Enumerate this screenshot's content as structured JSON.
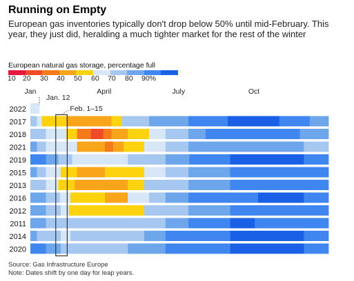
{
  "title": "Running on Empty",
  "subtitle": "European gas inventories typically don't drop below 50% until mid-February. This year, they just did, heralding a much tighter market for the rest of the winter",
  "legend": {
    "title": "European natural gas storage, percentage full",
    "ticks": [
      "10",
      "20",
      "30",
      "40",
      "50",
      "60",
      "70",
      "80",
      "90%"
    ],
    "colors": [
      "#e8173e",
      "#ee4b26",
      "#f6791a",
      "#f9a51c",
      "#fdd20e",
      "#d8e7f7",
      "#a6c8f0",
      "#6ea6ec",
      "#3f86f0",
      "#1a60e6"
    ]
  },
  "source": "Source: Gas Infrastructure Europe",
  "note": "Note: Dates shift by one day for leap years.",
  "chart_data": {
    "type": "heatmap",
    "x_axis": {
      "labels": [
        "Jan",
        "April",
        "July",
        "Oct"
      ],
      "label_days": [
        1,
        91,
        182,
        274
      ],
      "range_days": [
        1,
        365
      ]
    },
    "annotations": [
      {
        "label": "Jan. 12",
        "day": 12
      },
      {
        "label": "Feb. 1–15",
        "start_day": 32,
        "end_day": 46
      }
    ],
    "rows": [
      {
        "year": "2022",
        "segments": [
          [
            1,
            12,
            55
          ]
        ]
      },
      {
        "year": "2017",
        "segments": [
          [
            1,
            9,
            65
          ],
          [
            9,
            15,
            58
          ],
          [
            15,
            25,
            48
          ],
          [
            25,
            45,
            45
          ],
          [
            45,
            85,
            34
          ],
          [
            85,
            100,
            36
          ],
          [
            100,
            113,
            45
          ],
          [
            113,
            130,
            63
          ],
          [
            130,
            146,
            68
          ],
          [
            146,
            166,
            72
          ],
          [
            166,
            194,
            76
          ],
          [
            194,
            215,
            84
          ],
          [
            215,
            242,
            88
          ],
          [
            242,
            305,
            91
          ],
          [
            305,
            342,
            86
          ],
          [
            342,
            365,
            78
          ]
        ]
      },
      {
        "year": "2018",
        "segments": [
          [
            1,
            9,
            68
          ],
          [
            9,
            20,
            62
          ],
          [
            20,
            45,
            53
          ],
          [
            45,
            58,
            40
          ],
          [
            58,
            75,
            24
          ],
          [
            75,
            90,
            17
          ],
          [
            90,
            100,
            24
          ],
          [
            100,
            120,
            32
          ],
          [
            120,
            130,
            40
          ],
          [
            130,
            146,
            48
          ],
          [
            146,
            166,
            56
          ],
          [
            166,
            194,
            65
          ],
          [
            194,
            215,
            72
          ],
          [
            215,
            246,
            80
          ],
          [
            246,
            305,
            88
          ],
          [
            305,
            330,
            84
          ],
          [
            330,
            365,
            76
          ]
        ]
      },
      {
        "year": "2021",
        "segments": [
          [
            1,
            9,
            72
          ],
          [
            9,
            20,
            66
          ],
          [
            20,
            38,
            58
          ],
          [
            38,
            58,
            50
          ],
          [
            58,
            92,
            35
          ],
          [
            92,
            102,
            26
          ],
          [
            102,
            115,
            30
          ],
          [
            115,
            140,
            44
          ],
          [
            140,
            166,
            58
          ],
          [
            166,
            194,
            64
          ],
          [
            194,
            223,
            70
          ],
          [
            223,
            250,
            76
          ],
          [
            250,
            305,
            78
          ],
          [
            305,
            335,
            72
          ],
          [
            335,
            365,
            60
          ]
        ]
      },
      {
        "year": "2019",
        "segments": [
          [
            1,
            9,
            86
          ],
          [
            9,
            20,
            80
          ],
          [
            20,
            35,
            72
          ],
          [
            35,
            52,
            65
          ],
          [
            52,
            120,
            52
          ],
          [
            120,
            166,
            64
          ],
          [
            166,
            195,
            73
          ],
          [
            195,
            245,
            85
          ],
          [
            245,
            335,
            93
          ],
          [
            335,
            365,
            88
          ]
        ]
      },
      {
        "year": "2015",
        "segments": [
          [
            1,
            9,
            70
          ],
          [
            9,
            20,
            63
          ],
          [
            20,
            38,
            56
          ],
          [
            38,
            46,
            48
          ],
          [
            46,
            58,
            46
          ],
          [
            58,
            92,
            35
          ],
          [
            92,
            115,
            40
          ],
          [
            115,
            140,
            46
          ],
          [
            140,
            166,
            56
          ],
          [
            166,
            194,
            65
          ],
          [
            194,
            245,
            73
          ],
          [
            245,
            280,
            82
          ],
          [
            280,
            335,
            86
          ],
          [
            335,
            365,
            80
          ]
        ]
      },
      {
        "year": "2013",
        "segments": [
          [
            1,
            9,
            66
          ],
          [
            9,
            20,
            60
          ],
          [
            20,
            35,
            55
          ],
          [
            35,
            55,
            48
          ],
          [
            55,
            78,
            38
          ],
          [
            78,
            100,
            30
          ],
          [
            100,
            120,
            37
          ],
          [
            120,
            140,
            45
          ],
          [
            140,
            166,
            60
          ],
          [
            166,
            194,
            66
          ],
          [
            194,
            245,
            75
          ],
          [
            245,
            280,
            83
          ],
          [
            280,
            335,
            89
          ],
          [
            335,
            365,
            82
          ]
        ]
      },
      {
        "year": "2016",
        "segments": [
          [
            1,
            9,
            75
          ],
          [
            9,
            20,
            70
          ],
          [
            20,
            37,
            62
          ],
          [
            37,
            50,
            50
          ],
          [
            50,
            92,
            45
          ],
          [
            92,
            120,
            38
          ],
          [
            120,
            146,
            55
          ],
          [
            146,
            166,
            64
          ],
          [
            166,
            194,
            72
          ],
          [
            194,
            245,
            82
          ],
          [
            245,
            279,
            88
          ],
          [
            279,
            300,
            94
          ],
          [
            300,
            335,
            90
          ],
          [
            335,
            365,
            84
          ]
        ]
      },
      {
        "year": "2012",
        "segments": [
          [
            1,
            9,
            76
          ],
          [
            9,
            20,
            70
          ],
          [
            20,
            38,
            64
          ],
          [
            38,
            48,
            56
          ],
          [
            48,
            80,
            46
          ],
          [
            80,
            120,
            40
          ],
          [
            120,
            140,
            48
          ],
          [
            140,
            166,
            60
          ],
          [
            166,
            194,
            68
          ],
          [
            194,
            245,
            77
          ],
          [
            245,
            290,
            86
          ],
          [
            290,
            335,
            89
          ],
          [
            335,
            365,
            83
          ]
        ]
      },
      {
        "year": "2011",
        "segments": [
          [
            1,
            9,
            78
          ],
          [
            9,
            20,
            72
          ],
          [
            20,
            38,
            67
          ],
          [
            38,
            52,
            60
          ],
          [
            52,
            130,
            65
          ],
          [
            130,
            166,
            68
          ],
          [
            166,
            194,
            75
          ],
          [
            194,
            245,
            83
          ],
          [
            245,
            275,
            90
          ],
          [
            275,
            335,
            88
          ],
          [
            335,
            365,
            80
          ]
        ]
      },
      {
        "year": "2014",
        "segments": [
          [
            1,
            9,
            74
          ],
          [
            9,
            20,
            68
          ],
          [
            20,
            38,
            63
          ],
          [
            38,
            50,
            58
          ],
          [
            50,
            92,
            62
          ],
          [
            92,
            140,
            66
          ],
          [
            140,
            166,
            72
          ],
          [
            166,
            194,
            80
          ],
          [
            194,
            245,
            87
          ],
          [
            245,
            335,
            92
          ],
          [
            335,
            365,
            88
          ]
        ]
      },
      {
        "year": "2020",
        "segments": [
          [
            1,
            9,
            86
          ],
          [
            9,
            20,
            81
          ],
          [
            20,
            38,
            74
          ],
          [
            38,
            50,
            67
          ],
          [
            50,
            75,
            63
          ],
          [
            75,
            92,
            60
          ],
          [
            92,
            120,
            62
          ],
          [
            120,
            166,
            72
          ],
          [
            166,
            194,
            82
          ],
          [
            194,
            245,
            89
          ],
          [
            245,
            335,
            94
          ],
          [
            335,
            365,
            88
          ]
        ]
      }
    ]
  }
}
